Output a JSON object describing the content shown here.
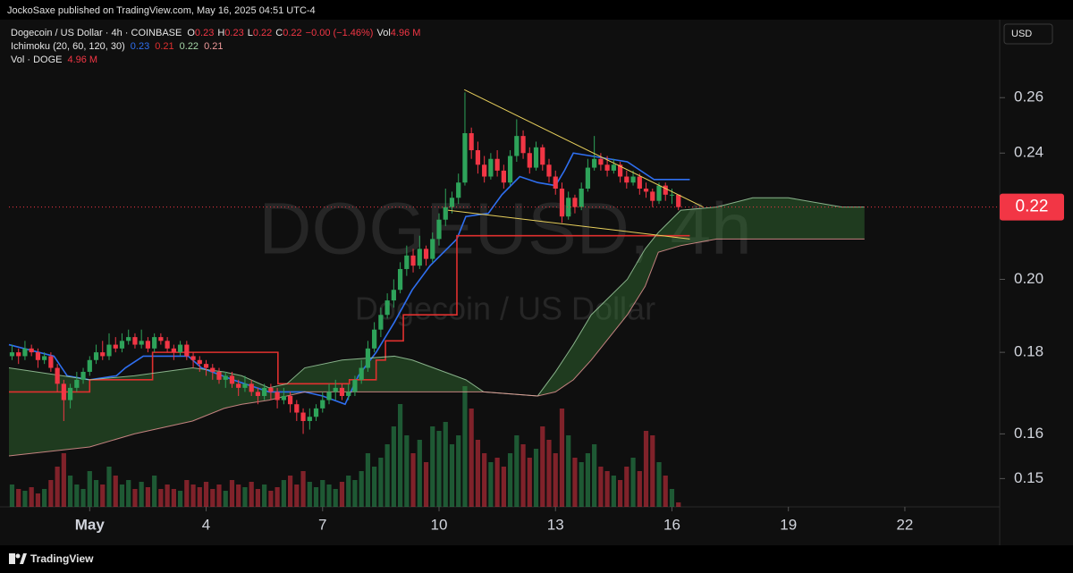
{
  "header": {
    "publisher": "JockoSaxe published on TradingView.com, May 16, 2025 04:51 UTC-4"
  },
  "footer": {
    "brand": "TradingView"
  },
  "chart_data": {
    "type": "candlestick",
    "title": "Dogecoin / US Dollar · 4h · COINBASE",
    "watermark": "DOGEUSD, 4h",
    "watermark_subtitle": "Dogecoin / US Dollar",
    "currency": "USD",
    "price_label": "0.22",
    "legend": [
      {
        "label": "O",
        "value": "0.23"
      },
      {
        "label": "H",
        "value": "0.23"
      },
      {
        "label": "L",
        "value": "0.22"
      },
      {
        "label": "C",
        "value": "0.22"
      }
    ],
    "change": "−0.00 (−1.46%)",
    "volume_legend_label": "Vol",
    "volume_name": "Vol · DOGE",
    "volume_label": "4.96 M",
    "up_color": "#2ea35a",
    "down_color": "#f23645",
    "log_scale": true,
    "grid": false,
    "xlim": [
      -1.08,
      24.42
    ],
    "xticks": [
      {
        "value": 1,
        "label": "May"
      },
      4,
      7,
      10,
      13,
      16,
      19,
      22
    ],
    "ylim": [
      0.144,
      0.288
    ],
    "yticks": [
      0.15,
      0.16,
      0.18,
      {
        "value": 0.2,
        "label": "0.20"
      },
      0.22,
      0.24,
      0.26
    ],
    "x": [
      -1,
      -0.833,
      -0.667,
      -0.5,
      -0.333,
      -0.167,
      0,
      0.167,
      0.333,
      0.5,
      0.667,
      0.833,
      1,
      1.167,
      1.333,
      1.5,
      1.667,
      1.833,
      2,
      2.167,
      2.333,
      2.5,
      2.667,
      2.833,
      3,
      3.167,
      3.333,
      3.5,
      3.667,
      3.833,
      4,
      4.167,
      4.333,
      4.5,
      4.667,
      4.833,
      5,
      5.167,
      5.333,
      5.5,
      5.667,
      5.833,
      6,
      6.167,
      6.333,
      6.5,
      6.667,
      6.833,
      7,
      7.167,
      7.333,
      7.5,
      7.667,
      7.833,
      8,
      8.167,
      8.333,
      8.5,
      8.667,
      8.833,
      9,
      9.167,
      9.333,
      9.5,
      9.667,
      9.833,
      10,
      10.167,
      10.333,
      10.5,
      10.667,
      10.833,
      11,
      11.167,
      11.333,
      11.5,
      11.667,
      11.833,
      12,
      12.167,
      12.333,
      12.5,
      12.667,
      12.833,
      13,
      13.167,
      13.333,
      13.5,
      13.667,
      13.833,
      14,
      14.167,
      14.333,
      14.5,
      14.667,
      14.833,
      15,
      15.167,
      15.333,
      15.5,
      15.667,
      15.833,
      16,
      16.167
    ],
    "open": [
      0.179,
      0.18,
      0.179,
      0.181,
      0.18,
      0.178,
      0.179,
      0.176,
      0.172,
      0.168,
      0.171,
      0.173,
      0.175,
      0.178,
      0.18,
      0.179,
      0.182,
      0.181,
      0.183,
      0.184,
      0.182,
      0.183,
      0.181,
      0.184,
      0.183,
      0.181,
      0.18,
      0.182,
      0.179,
      0.178,
      0.177,
      0.176,
      0.175,
      0.173,
      0.174,
      0.172,
      0.171,
      0.172,
      0.17,
      0.169,
      0.171,
      0.17,
      0.168,
      0.169,
      0.167,
      0.165,
      0.163,
      0.164,
      0.166,
      0.168,
      0.17,
      0.171,
      0.169,
      0.17,
      0.173,
      0.176,
      0.181,
      0.186,
      0.19,
      0.194,
      0.197,
      0.203,
      0.207,
      0.204,
      0.209,
      0.206,
      0.212,
      0.218,
      0.222,
      0.225,
      0.23,
      0.247,
      0.241,
      0.236,
      0.232,
      0.238,
      0.234,
      0.23,
      0.239,
      0.246,
      0.24,
      0.235,
      0.242,
      0.236,
      0.232,
      0.228,
      0.219,
      0.225,
      0.222,
      0.228,
      0.235,
      0.238,
      0.236,
      0.234,
      0.236,
      0.232,
      0.23,
      0.232,
      0.228,
      0.227,
      0.224,
      0.229,
      0.226,
      0.226
    ],
    "high": [
      0.182,
      0.181,
      0.183,
      0.182,
      0.181,
      0.18,
      0.18,
      0.177,
      0.173,
      0.172,
      0.175,
      0.176,
      0.179,
      0.182,
      0.183,
      0.185,
      0.184,
      0.185,
      0.186,
      0.185,
      0.186,
      0.184,
      0.185,
      0.185,
      0.184,
      0.182,
      0.183,
      0.183,
      0.18,
      0.179,
      0.178,
      0.177,
      0.176,
      0.175,
      0.175,
      0.173,
      0.174,
      0.173,
      0.171,
      0.172,
      0.172,
      0.171,
      0.171,
      0.17,
      0.168,
      0.166,
      0.166,
      0.167,
      0.17,
      0.172,
      0.173,
      0.172,
      0.172,
      0.174,
      0.178,
      0.183,
      0.188,
      0.192,
      0.196,
      0.2,
      0.205,
      0.21,
      0.209,
      0.213,
      0.21,
      0.214,
      0.22,
      0.228,
      0.227,
      0.233,
      0.262,
      0.249,
      0.244,
      0.239,
      0.24,
      0.241,
      0.236,
      0.241,
      0.252,
      0.248,
      0.242,
      0.244,
      0.243,
      0.238,
      0.234,
      0.23,
      0.227,
      0.226,
      0.23,
      0.238,
      0.246,
      0.24,
      0.239,
      0.238,
      0.237,
      0.234,
      0.234,
      0.233,
      0.23,
      0.228,
      0.23,
      0.23,
      0.228,
      0.226
    ],
    "low": [
      0.178,
      0.177,
      0.178,
      0.179,
      0.176,
      0.177,
      0.175,
      0.17,
      0.163,
      0.166,
      0.17,
      0.172,
      0.174,
      0.177,
      0.178,
      0.178,
      0.18,
      0.18,
      0.182,
      0.181,
      0.181,
      0.18,
      0.18,
      0.182,
      0.18,
      0.178,
      0.179,
      0.178,
      0.176,
      0.175,
      0.174,
      0.173,
      0.172,
      0.171,
      0.171,
      0.169,
      0.17,
      0.169,
      0.167,
      0.168,
      0.168,
      0.166,
      0.167,
      0.165,
      0.163,
      0.16,
      0.161,
      0.163,
      0.165,
      0.167,
      0.168,
      0.168,
      0.168,
      0.169,
      0.172,
      0.175,
      0.18,
      0.184,
      0.189,
      0.192,
      0.196,
      0.201,
      0.202,
      0.203,
      0.204,
      0.205,
      0.21,
      0.216,
      0.22,
      0.223,
      0.229,
      0.238,
      0.233,
      0.23,
      0.231,
      0.232,
      0.228,
      0.229,
      0.237,
      0.238,
      0.233,
      0.234,
      0.234,
      0.23,
      0.226,
      0.217,
      0.218,
      0.22,
      0.221,
      0.227,
      0.234,
      0.234,
      0.232,
      0.233,
      0.23,
      0.228,
      0.229,
      0.226,
      0.225,
      0.222,
      0.223,
      0.224,
      0.223,
      0.221
    ],
    "close": [
      0.18,
      0.179,
      0.181,
      0.18,
      0.178,
      0.179,
      0.176,
      0.172,
      0.168,
      0.171,
      0.173,
      0.175,
      0.178,
      0.18,
      0.179,
      0.182,
      0.181,
      0.183,
      0.184,
      0.182,
      0.183,
      0.181,
      0.184,
      0.183,
      0.181,
      0.18,
      0.182,
      0.179,
      0.178,
      0.177,
      0.176,
      0.175,
      0.173,
      0.174,
      0.172,
      0.171,
      0.172,
      0.17,
      0.169,
      0.171,
      0.17,
      0.168,
      0.169,
      0.167,
      0.165,
      0.163,
      0.164,
      0.166,
      0.168,
      0.17,
      0.171,
      0.169,
      0.17,
      0.173,
      0.176,
      0.181,
      0.186,
      0.19,
      0.194,
      0.197,
      0.203,
      0.207,
      0.204,
      0.209,
      0.206,
      0.212,
      0.218,
      0.222,
      0.225,
      0.23,
      0.247,
      0.241,
      0.236,
      0.232,
      0.238,
      0.234,
      0.23,
      0.239,
      0.246,
      0.24,
      0.235,
      0.242,
      0.236,
      0.232,
      0.228,
      0.219,
      0.225,
      0.222,
      0.228,
      0.235,
      0.238,
      0.236,
      0.234,
      0.236,
      0.232,
      0.23,
      0.232,
      0.228,
      0.227,
      0.224,
      0.229,
      0.226,
      0.226,
      0.222
    ],
    "volume": [
      25,
      20,
      18,
      22,
      15,
      20,
      30,
      45,
      60,
      35,
      25,
      20,
      40,
      30,
      25,
      45,
      35,
      25,
      30,
      20,
      28,
      22,
      35,
      20,
      25,
      20,
      18,
      30,
      25,
      22,
      28,
      20,
      25,
      18,
      30,
      25,
      22,
      28,
      20,
      25,
      18,
      22,
      30,
      35,
      25,
      40,
      28,
      22,
      30,
      25,
      20,
      28,
      35,
      30,
      40,
      60,
      45,
      55,
      70,
      90,
      115,
      80,
      60,
      75,
      50,
      90,
      85,
      95,
      70,
      80,
      135,
      110,
      75,
      60,
      50,
      55,
      45,
      60,
      80,
      70,
      55,
      65,
      90,
      75,
      60,
      110,
      80,
      55,
      50,
      60,
      70,
      45,
      40,
      35,
      30,
      45,
      55,
      40,
      85,
      80,
      50,
      35,
      20,
      4.96
    ],
    "indicator": {
      "name": "Ichimoku (20, 60, 120, 30)",
      "lines": [
        {
          "color": "#2f6ff0",
          "legend_value": "0.23",
          "x": [
            -1.08,
            0.08,
            0.42,
            1,
            1.69,
            1.92,
            2.38,
            3.54,
            3.88,
            4.69,
            5.62,
            6.54,
            7,
            7.58,
            7.92,
            8.38,
            8.85,
            9.31,
            9.77,
            10.46,
            10.69,
            11.27,
            11.62,
            12.08,
            12.54,
            13,
            13.23,
            13.46,
            14.38,
            14.85,
            15.54,
            16.46
          ],
          "values": [
            0.182,
            0.179,
            0.174,
            0.173,
            0.174,
            0.176,
            0.179,
            0.179,
            0.176,
            0.173,
            0.17,
            0.17,
            0.169,
            0.167,
            0.174,
            0.18,
            0.188,
            0.197,
            0.204,
            0.212,
            0.219,
            0.22,
            0.226,
            0.232,
            0.23,
            0.229,
            0.234,
            0.24,
            0.238,
            0.237,
            0.231,
            0.231
          ]
        },
        {
          "color": "#e0302f",
          "legend_value": "0.21",
          "step": true,
          "x": [
            -1.08,
            1,
            2.62,
            5.85,
            7.69,
            8.38,
            8.62,
            9.08,
            10.46,
            16.46
          ],
          "values": [
            0.17,
            0.173,
            0.18,
            0.172,
            0.173,
            0.178,
            0.183,
            0.19,
            0.213,
            0.213
          ]
        },
        {
          "color": "#a5d6a7",
          "legend_value": "0.22",
          "x": [
            -1.08,
            1,
            2.15,
            3.65,
            4.46,
            4.92,
            5.62,
            6.08,
            6.54,
            7.5,
            8.85,
            9.31,
            10.69,
            11.15,
            12.54,
            13,
            13.46,
            13.92,
            14.85,
            15.31,
            15.65,
            16.23,
            17.15,
            18.08,
            19,
            20.38,
            20.96
          ],
          "values": [
            0.176,
            0.173,
            0.174,
            0.176,
            0.175,
            0.174,
            0.171,
            0.172,
            0.176,
            0.178,
            0.179,
            0.178,
            0.173,
            0.17,
            0.169,
            0.175,
            0.182,
            0.19,
            0.2,
            0.209,
            0.214,
            0.221,
            0.222,
            0.225,
            0.225,
            0.222,
            0.222
          ]
        },
        {
          "color": "#ef9a9a",
          "legend_value": "0.21",
          "x": [
            -1.08,
            1,
            2.15,
            3.65,
            4.46,
            4.92,
            5.62,
            6.08,
            6.54,
            7.5,
            8.85,
            9.31,
            10.69,
            11.15,
            12.54,
            13,
            13.46,
            13.92,
            14.85,
            15.31,
            15.65,
            16.23,
            17.15,
            18.08,
            19,
            20.38,
            20.96
          ],
          "values": [
            0.155,
            0.157,
            0.16,
            0.163,
            0.166,
            0.167,
            0.168,
            0.169,
            0.17,
            0.17,
            0.17,
            0.17,
            0.17,
            0.17,
            0.169,
            0.17,
            0.173,
            0.178,
            0.19,
            0.198,
            0.208,
            0.21,
            0.212,
            0.212,
            0.212,
            0.212,
            0.212
          ]
        }
      ],
      "cloud_color": "#3f8f3f"
    },
    "trendlines": [
      {
        "color": "#e8d05c",
        "x": [
          10.65,
          16.81
        ],
        "values": [
          0.263,
          0.222
        ]
      },
      {
        "color": "#e8d05c",
        "x": [
          10.23,
          16.46
        ],
        "values": [
          0.221,
          0.212
        ]
      }
    ]
  }
}
